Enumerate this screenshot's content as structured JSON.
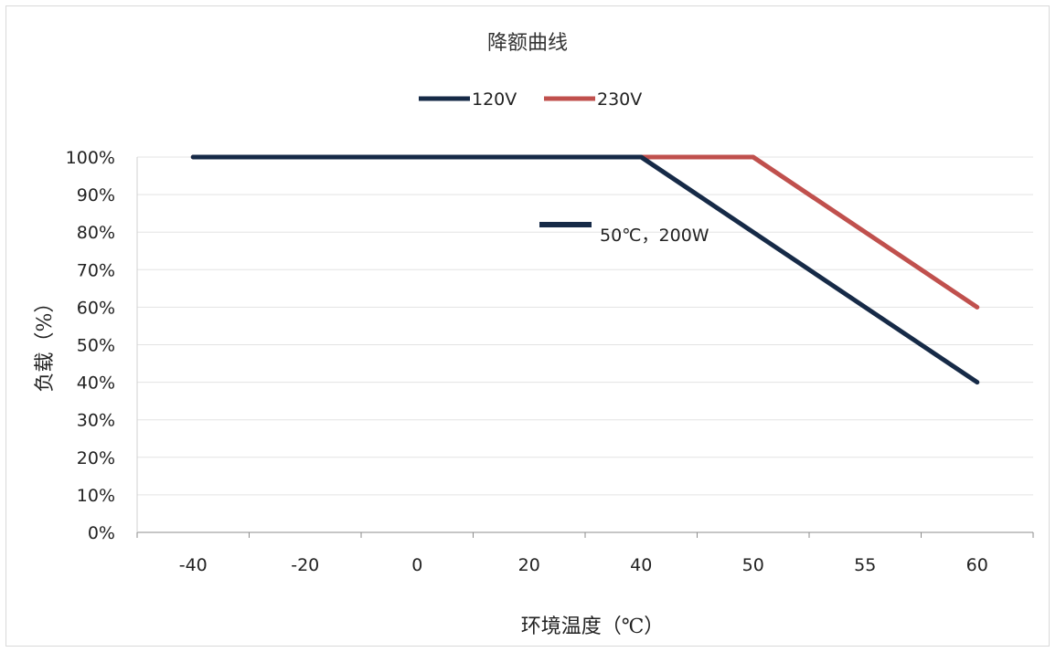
{
  "chart_data": {
    "type": "line",
    "title": "降额曲线",
    "xlabel": "环境温度（℃）",
    "ylabel": "负载（%）",
    "categories": [
      "-40",
      "-20",
      "0",
      "20",
      "40",
      "50",
      "55",
      "60"
    ],
    "y_ticks": [
      "0%",
      "10%",
      "20%",
      "30%",
      "40%",
      "50%",
      "60%",
      "70%",
      "80%",
      "90%",
      "100%"
    ],
    "ylim": [
      0,
      100
    ],
    "grid": true,
    "legend_position": "top",
    "series": [
      {
        "name": "120V",
        "color": "#162a47",
        "values": [
          100,
          100,
          100,
          100,
          100,
          80,
          60,
          40
        ]
      },
      {
        "name": "230V",
        "color": "#c0504d",
        "values": [
          100,
          100,
          100,
          100,
          100,
          100,
          80,
          60
        ]
      }
    ],
    "annotation": {
      "text": "50℃，200W",
      "color": "#162a47"
    }
  }
}
